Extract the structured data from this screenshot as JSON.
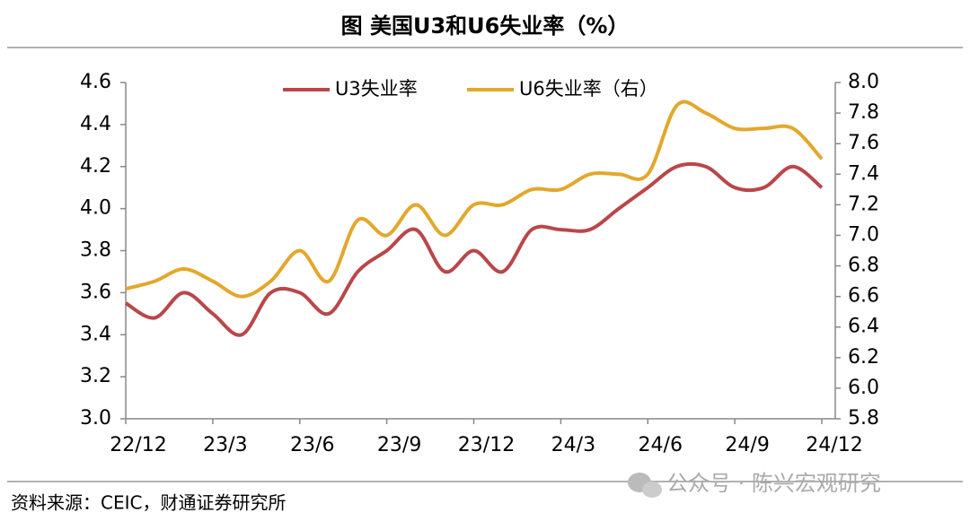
{
  "chart_data": {
    "type": "line",
    "title": "图 美国U3和U6失业率（%）",
    "source": "资料来源：CEIC，财通证券研究所",
    "watermark": "公众号 · 陈兴宏观研究",
    "categories": [
      "22/12",
      null,
      null,
      "23/3",
      null,
      null,
      "23/6",
      null,
      null,
      "23/9",
      null,
      null,
      "23/12",
      null,
      null,
      "24/3",
      null,
      null,
      "24/6",
      null,
      null,
      "24/9",
      null,
      null,
      "24/12"
    ],
    "series": [
      {
        "name": "U3失业率",
        "color": "#b9474a",
        "axis": "y",
        "values": [
          3.55,
          3.48,
          3.6,
          3.5,
          3.4,
          3.6,
          3.6,
          3.5,
          3.7,
          3.8,
          3.9,
          3.7,
          3.8,
          3.7,
          3.9,
          3.9,
          3.9,
          4.0,
          4.1,
          4.2,
          4.2,
          4.1,
          4.1,
          4.2,
          4.1
        ]
      },
      {
        "name": "U6失业率（右）",
        "color": "#e2a82c",
        "axis": "y2",
        "values": [
          6.65,
          6.7,
          6.78,
          6.7,
          6.6,
          6.7,
          6.9,
          6.7,
          7.1,
          7.0,
          7.2,
          7.0,
          7.2,
          7.2,
          7.3,
          7.3,
          7.4,
          7.4,
          7.4,
          7.85,
          7.8,
          7.7,
          7.7,
          7.7,
          7.5
        ]
      }
    ],
    "ylim": [
      3.0,
      4.6
    ],
    "yticks": [
      {
        "value": 3,
        "label": "3.0"
      },
      3.2,
      3.4,
      3.6,
      3.8,
      {
        "value": 4,
        "label": "4.0"
      },
      4.2,
      4.4,
      4.6
    ],
    "y2lim": [
      5.8,
      8.0
    ],
    "y2ticks": [
      5.8,
      {
        "value": 6,
        "label": "6.0"
      },
      6.2,
      6.4,
      6.6,
      6.8,
      {
        "value": 7,
        "label": "7.0"
      },
      7.2,
      7.4,
      7.6,
      7.8,
      {
        "value": 8,
        "label": "8.0"
      }
    ],
    "legend": "top"
  }
}
